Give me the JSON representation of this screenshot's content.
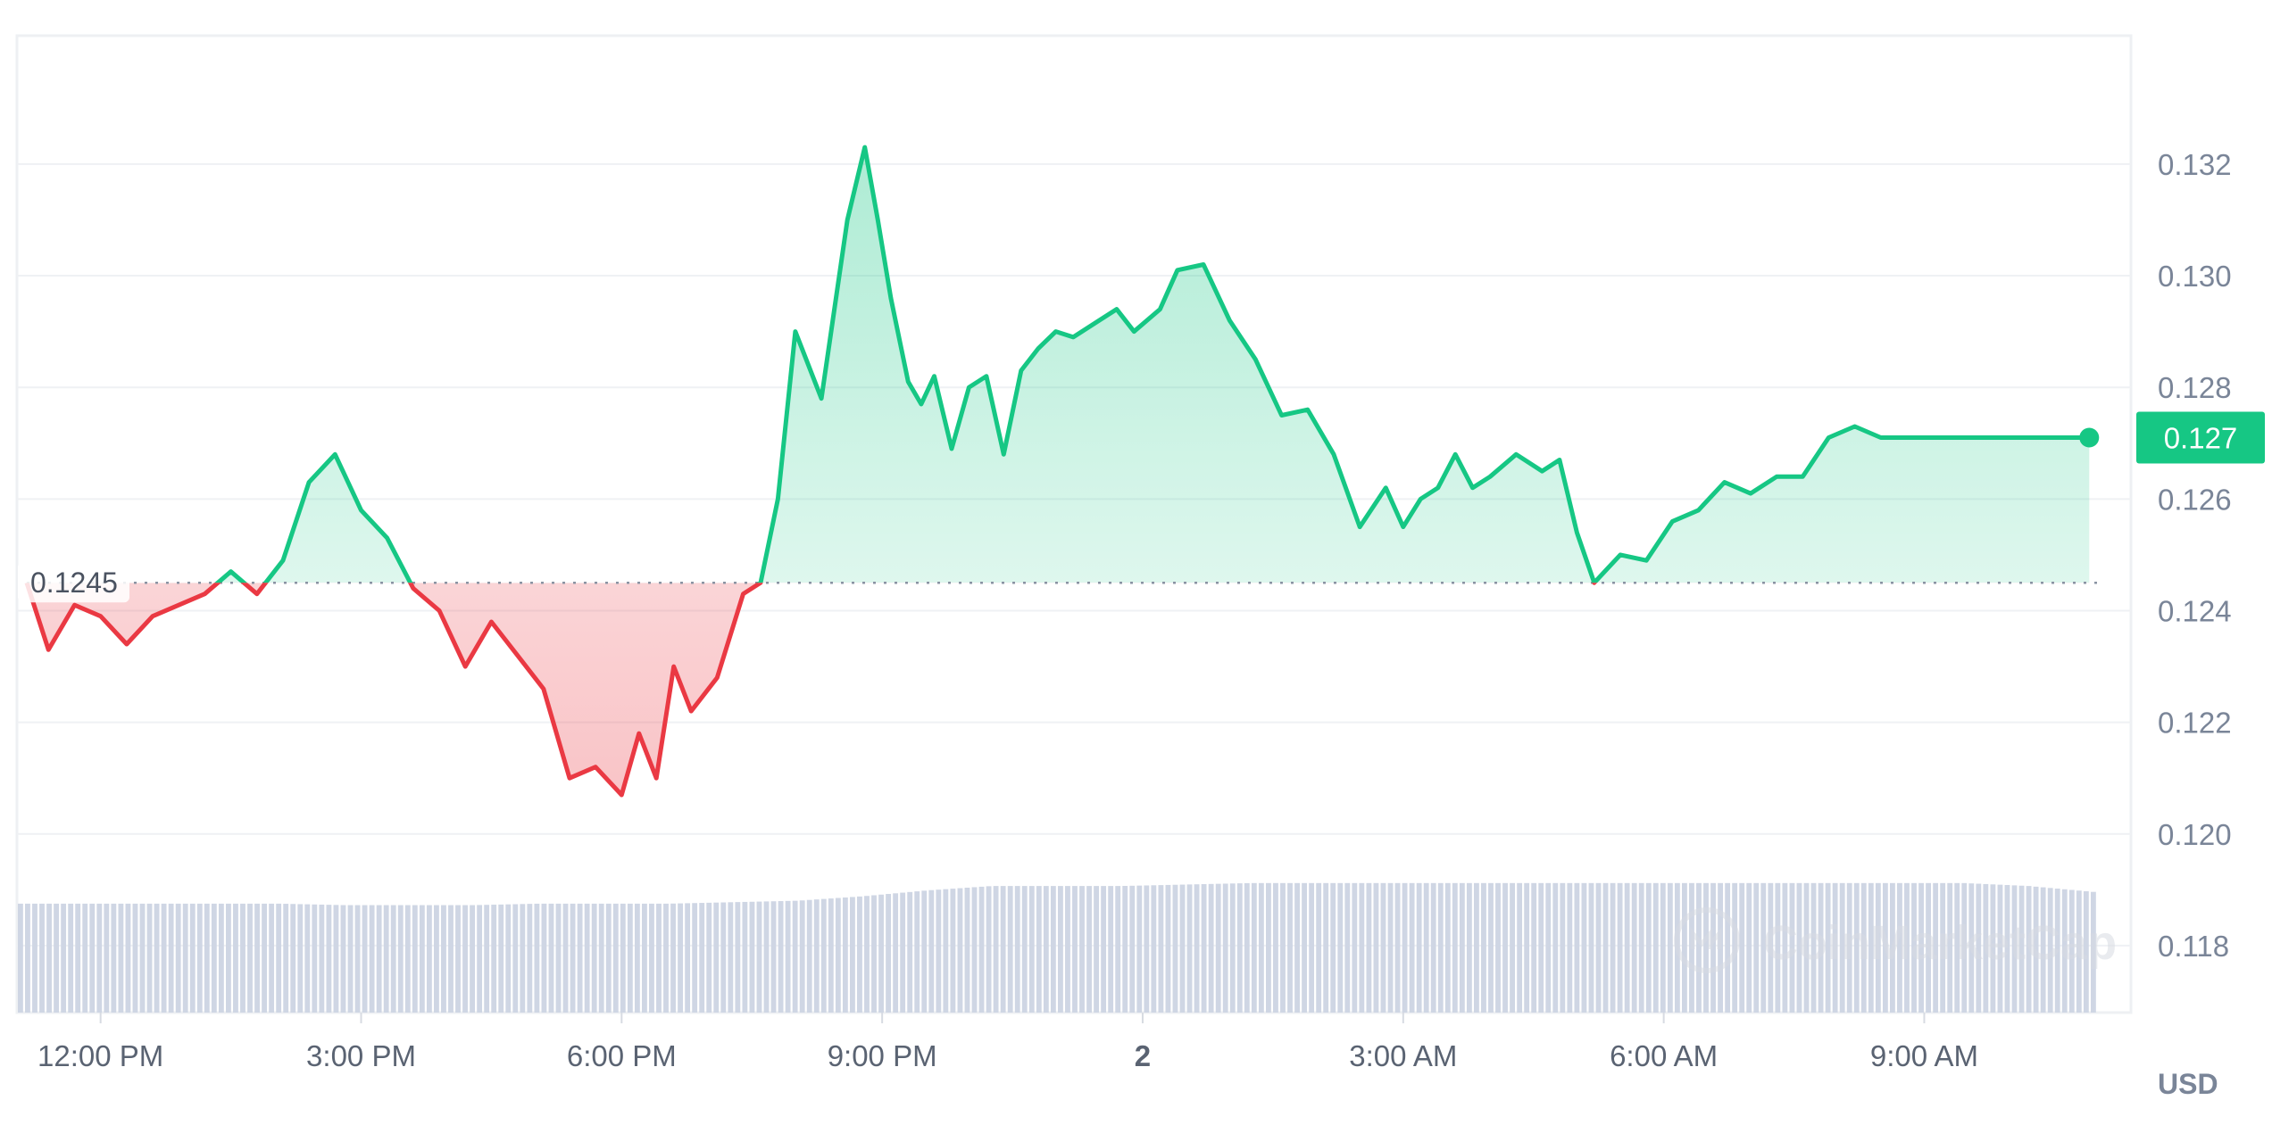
{
  "chart_data": {
    "type": "area",
    "baseline": {
      "value": 0.1245,
      "label": "0.1245"
    },
    "current": {
      "value": 0.1271,
      "label": "0.127"
    },
    "currency_label": "USD",
    "watermark": "CoinMarketCap",
    "ylim": [
      0.1168,
      0.1343
    ],
    "y_ticks": [
      "0.132",
      "0.130",
      "0.128",
      "0.126",
      "0.124",
      "0.122",
      "0.120",
      "0.118"
    ],
    "x_ticks": [
      {
        "label": "12:00 PM",
        "hour": 12,
        "bold": false
      },
      {
        "label": "3:00 PM",
        "hour": 15,
        "bold": false
      },
      {
        "label": "6:00 PM",
        "hour": 18,
        "bold": false
      },
      {
        "label": "9:00 PM",
        "hour": 21,
        "bold": false
      },
      {
        "label": "2",
        "hour": 24,
        "bold": true
      },
      {
        "label": "3:00 AM",
        "hour": 27,
        "bold": false
      },
      {
        "label": "6:00 AM",
        "hour": 30,
        "bold": false
      },
      {
        "label": "9:00 AM",
        "hour": 33,
        "bold": false
      }
    ],
    "xlim_hours": [
      11.15,
      35.0
    ],
    "price_hours": [
      11.15,
      11.4,
      11.7,
      12.0,
      12.3,
      12.6,
      12.9,
      13.2,
      13.5,
      13.8,
      14.1,
      14.4,
      14.7,
      15.0,
      15.3,
      15.6,
      15.9,
      16.2,
      16.5,
      16.8,
      17.1,
      17.4,
      17.7,
      18.0,
      18.2,
      18.4,
      18.6,
      18.8,
      19.1,
      19.4,
      19.6,
      19.8,
      20.0,
      20.3,
      20.6,
      20.8,
      20.95,
      21.1,
      21.3,
      21.45,
      21.6,
      21.8,
      22.0,
      22.2,
      22.4,
      22.6,
      22.8,
      23.0,
      23.2,
      23.5,
      23.7,
      23.9,
      24.2,
      24.4,
      24.7,
      25.0,
      25.3,
      25.6,
      25.9,
      26.2,
      26.5,
      26.8,
      27.0,
      27.2,
      27.4,
      27.6,
      27.8,
      28.0,
      28.3,
      28.6,
      28.8,
      29.0,
      29.2,
      29.5,
      29.8,
      30.1,
      30.4,
      30.7,
      31.0,
      31.3,
      31.6,
      31.9,
      32.2,
      32.5,
      32.8,
      33.1,
      33.4,
      33.7,
      34.0,
      34.3,
      34.6,
      34.9
    ],
    "price_values": [
      0.1245,
      0.1233,
      0.1241,
      0.1239,
      0.1234,
      0.1239,
      0.1241,
      0.1243,
      0.1247,
      0.1243,
      0.1249,
      0.1263,
      0.1268,
      0.1258,
      0.1253,
      0.1244,
      0.124,
      0.123,
      0.1238,
      0.1232,
      0.1226,
      0.121,
      0.1212,
      0.1207,
      0.1218,
      0.121,
      0.123,
      0.1222,
      0.1228,
      0.1243,
      0.1245,
      0.126,
      0.129,
      0.1278,
      0.131,
      0.1323,
      0.131,
      0.1296,
      0.1281,
      0.1277,
      0.1282,
      0.1269,
      0.128,
      0.1282,
      0.1268,
      0.1283,
      0.1287,
      0.129,
      0.1289,
      0.1292,
      0.1294,
      0.129,
      0.1294,
      0.1301,
      0.1302,
      0.1292,
      0.1285,
      0.1275,
      0.1276,
      0.1268,
      0.1255,
      0.1262,
      0.1255,
      0.126,
      0.1262,
      0.1268,
      0.1262,
      0.1264,
      0.1268,
      0.1265,
      0.1267,
      0.1254,
      0.1245,
      0.125,
      0.1249,
      0.1256,
      0.1258,
      0.1263,
      0.1261,
      0.1264,
      0.1264,
      0.1271,
      0.1273,
      0.1271,
      0.1271,
      0.1271,
      0.1271,
      0.1271,
      0.1271,
      0.1271,
      0.1271,
      0.1271
    ],
    "volume_level": [
      0.74,
      0.74,
      0.74,
      0.74,
      0.74,
      0.73,
      0.73,
      0.73,
      0.74,
      0.74,
      0.74,
      0.75,
      0.76,
      0.79,
      0.83,
      0.86,
      0.86,
      0.86,
      0.87,
      0.88,
      0.88,
      0.88,
      0.88,
      0.88,
      0.88,
      0.88,
      0.88,
      0.88,
      0.88,
      0.88,
      0.88,
      0.86,
      0.82
    ]
  }
}
